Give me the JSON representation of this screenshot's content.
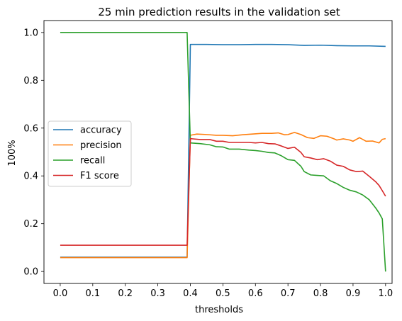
{
  "chart_data": {
    "type": "line",
    "title": "25 min prediction results in the validation set",
    "xlabel": "thresholds",
    "ylabel": "100%",
    "xlim": [
      -0.05,
      1.02
    ],
    "ylim": [
      -0.05,
      1.05
    ],
    "xticks": [
      0.0,
      0.1,
      0.2,
      0.3,
      0.4,
      0.5,
      0.6,
      0.7,
      0.8,
      0.9,
      1.0
    ],
    "xtick_labels": [
      "0.0",
      "0.1",
      "0.2",
      "0.3",
      "0.4",
      "0.5",
      "0.6",
      "0.7",
      "0.8",
      "0.9",
      "1.0"
    ],
    "yticks": [
      0.0,
      0.2,
      0.4,
      0.6,
      0.8,
      1.0
    ],
    "ytick_labels": [
      "0.0",
      "0.2",
      "0.4",
      "0.6",
      "0.8",
      "1.0"
    ],
    "grid": false,
    "legend_position": "center-left",
    "series": [
      {
        "name": "accuracy",
        "color": "#1f77b4",
        "points": [
          [
            0.0,
            0.06
          ],
          [
            0.39,
            0.06
          ],
          [
            0.4,
            0.95
          ],
          [
            0.45,
            0.95
          ],
          [
            0.5,
            0.949
          ],
          [
            0.55,
            0.949
          ],
          [
            0.6,
            0.95
          ],
          [
            0.65,
            0.95
          ],
          [
            0.7,
            0.949
          ],
          [
            0.75,
            0.946
          ],
          [
            0.8,
            0.947
          ],
          [
            0.85,
            0.945
          ],
          [
            0.9,
            0.944
          ],
          [
            0.95,
            0.944
          ],
          [
            1.0,
            0.942
          ]
        ]
      },
      {
        "name": "precision",
        "color": "#ff7f0e",
        "points": [
          [
            0.0,
            0.058
          ],
          [
            0.39,
            0.058
          ],
          [
            0.4,
            0.57
          ],
          [
            0.42,
            0.575
          ],
          [
            0.45,
            0.573
          ],
          [
            0.48,
            0.57
          ],
          [
            0.5,
            0.57
          ],
          [
            0.53,
            0.568
          ],
          [
            0.56,
            0.572
          ],
          [
            0.59,
            0.575
          ],
          [
            0.62,
            0.578
          ],
          [
            0.65,
            0.578
          ],
          [
            0.67,
            0.58
          ],
          [
            0.69,
            0.572
          ],
          [
            0.7,
            0.573
          ],
          [
            0.72,
            0.582
          ],
          [
            0.74,
            0.573
          ],
          [
            0.76,
            0.56
          ],
          [
            0.78,
            0.557
          ],
          [
            0.8,
            0.568
          ],
          [
            0.82,
            0.566
          ],
          [
            0.84,
            0.556
          ],
          [
            0.85,
            0.55
          ],
          [
            0.87,
            0.555
          ],
          [
            0.89,
            0.55
          ],
          [
            0.9,
            0.545
          ],
          [
            0.92,
            0.56
          ],
          [
            0.94,
            0.545
          ],
          [
            0.96,
            0.546
          ],
          [
            0.98,
            0.538
          ],
          [
            0.99,
            0.553
          ],
          [
            1.0,
            0.556
          ]
        ]
      },
      {
        "name": "recall",
        "color": "#2ca02c",
        "points": [
          [
            0.0,
            1.0
          ],
          [
            0.39,
            1.0
          ],
          [
            0.4,
            0.538
          ],
          [
            0.43,
            0.535
          ],
          [
            0.46,
            0.53
          ],
          [
            0.48,
            0.522
          ],
          [
            0.5,
            0.521
          ],
          [
            0.52,
            0.512
          ],
          [
            0.55,
            0.512
          ],
          [
            0.58,
            0.508
          ],
          [
            0.6,
            0.506
          ],
          [
            0.62,
            0.503
          ],
          [
            0.64,
            0.498
          ],
          [
            0.66,
            0.496
          ],
          [
            0.68,
            0.484
          ],
          [
            0.7,
            0.468
          ],
          [
            0.72,
            0.465
          ],
          [
            0.74,
            0.44
          ],
          [
            0.75,
            0.418
          ],
          [
            0.77,
            0.404
          ],
          [
            0.79,
            0.402
          ],
          [
            0.81,
            0.4
          ],
          [
            0.83,
            0.38
          ],
          [
            0.85,
            0.368
          ],
          [
            0.87,
            0.352
          ],
          [
            0.89,
            0.34
          ],
          [
            0.91,
            0.333
          ],
          [
            0.93,
            0.32
          ],
          [
            0.95,
            0.3
          ],
          [
            0.97,
            0.265
          ],
          [
            0.98,
            0.245
          ],
          [
            0.99,
            0.22
          ],
          [
            1.0,
            0.0
          ]
        ]
      },
      {
        "name": "F1 score",
        "color": "#d62728",
        "points": [
          [
            0.0,
            0.11
          ],
          [
            0.39,
            0.11
          ],
          [
            0.4,
            0.556
          ],
          [
            0.43,
            0.552
          ],
          [
            0.46,
            0.552
          ],
          [
            0.48,
            0.545
          ],
          [
            0.5,
            0.545
          ],
          [
            0.52,
            0.54
          ],
          [
            0.55,
            0.54
          ],
          [
            0.58,
            0.54
          ],
          [
            0.6,
            0.538
          ],
          [
            0.62,
            0.54
          ],
          [
            0.64,
            0.535
          ],
          [
            0.66,
            0.534
          ],
          [
            0.68,
            0.525
          ],
          [
            0.7,
            0.515
          ],
          [
            0.72,
            0.52
          ],
          [
            0.74,
            0.498
          ],
          [
            0.75,
            0.48
          ],
          [
            0.77,
            0.475
          ],
          [
            0.79,
            0.468
          ],
          [
            0.81,
            0.472
          ],
          [
            0.83,
            0.462
          ],
          [
            0.85,
            0.445
          ],
          [
            0.87,
            0.44
          ],
          [
            0.89,
            0.425
          ],
          [
            0.91,
            0.418
          ],
          [
            0.93,
            0.42
          ],
          [
            0.95,
            0.398
          ],
          [
            0.97,
            0.375
          ],
          [
            0.98,
            0.36
          ],
          [
            0.99,
            0.338
          ],
          [
            1.0,
            0.315
          ]
        ]
      }
    ]
  }
}
